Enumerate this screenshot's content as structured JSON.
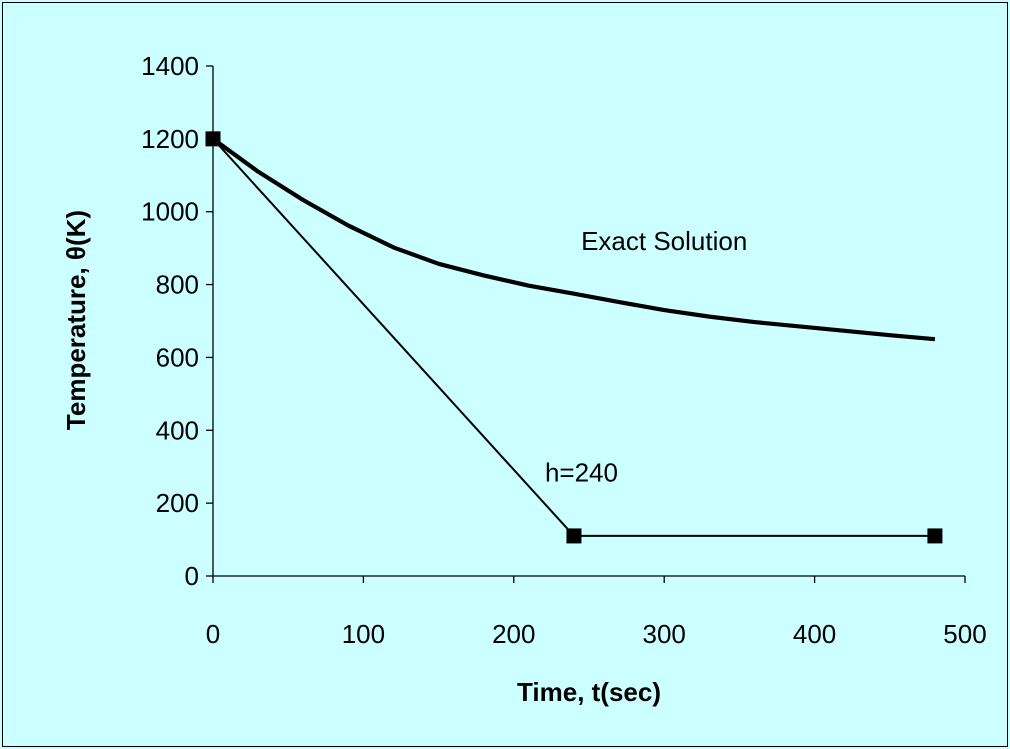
{
  "chart_data": {
    "type": "line",
    "title": "",
    "xlabel": "Time, t(sec)",
    "ylabel": "Temperature,  θ(K)",
    "xlim": [
      0,
      500
    ],
    "ylim": [
      0,
      1400
    ],
    "xticks": [
      0,
      100,
      200,
      300,
      400,
      500
    ],
    "yticks": [
      0,
      200,
      400,
      600,
      800,
      1000,
      1200,
      1400
    ],
    "grid": false,
    "legend": "none",
    "background_color": "#ccffff",
    "line_color": "#000000",
    "series": [
      {
        "label": "Exact Solution",
        "style": "thick",
        "markers": false,
        "x": [
          0,
          30,
          60,
          90,
          120,
          150,
          180,
          210,
          240,
          270,
          300,
          330,
          360,
          390,
          420,
          450,
          480
        ],
        "y": [
          1200,
          1110,
          1032,
          962,
          902,
          857,
          825,
          797,
          775,
          752,
          730,
          712,
          697,
          685,
          673,
          661,
          650
        ]
      },
      {
        "label": "h=240",
        "style": "thin",
        "markers": true,
        "x": [
          0,
          240,
          480
        ],
        "y": [
          1200,
          110,
          110
        ]
      }
    ],
    "annotations": [
      {
        "text": "Exact Solution",
        "x": 300,
        "y": 895
      },
      {
        "text": "h=240",
        "x": 245,
        "y": 260
      }
    ]
  }
}
